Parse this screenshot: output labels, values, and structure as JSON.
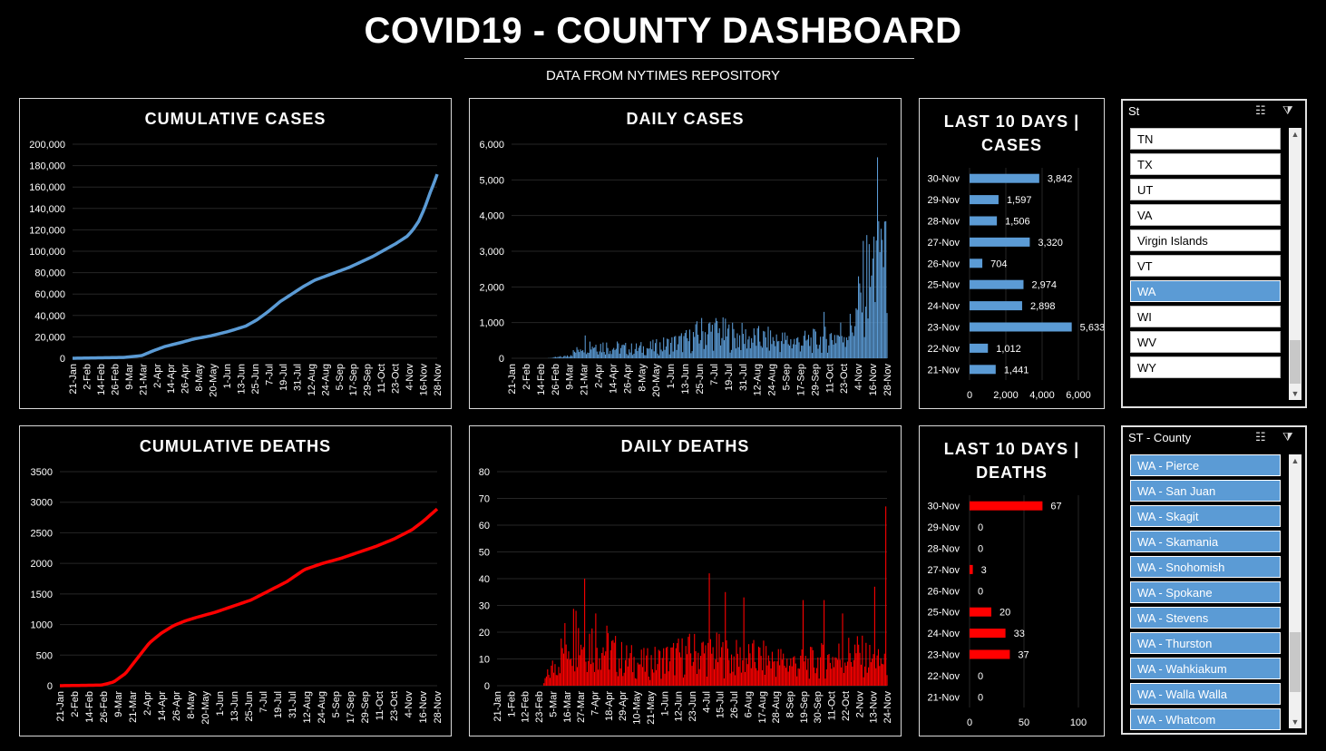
{
  "header": {
    "title": "COVID19 - COUNTY DASHBOARD",
    "subtitle": "DATA FROM NYTIMES REPOSITORY"
  },
  "colors": {
    "cases": "#5b9bd5",
    "deaths": "#ff0000",
    "background": "#000000",
    "selected_item": "#5b9bd5"
  },
  "chart_data": [
    {
      "id": "cumulative-cases",
      "type": "line",
      "title": "CUMULATIVE CASES",
      "x_ticks": [
        "21-Jan",
        "2-Feb",
        "14-Feb",
        "26-Feb",
        "9-Mar",
        "21-Mar",
        "2-Apr",
        "14-Apr",
        "26-Apr",
        "8-May",
        "20-May",
        "1-Jun",
        "13-Jun",
        "25-Jun",
        "7-Jul",
        "19-Jul",
        "31-Jul",
        "12-Aug",
        "24-Aug",
        "5-Sep",
        "17-Sep",
        "29-Sep",
        "11-Oct",
        "23-Oct",
        "4-Nov",
        "16-Nov",
        "28-Nov"
      ],
      "y_ticks": [
        "0",
        "20,000",
        "40,000",
        "60,000",
        "80,000",
        "100,000",
        "120,000",
        "140,000",
        "160,000",
        "180,000",
        "200,000"
      ],
      "ylim": [
        0,
        200000
      ],
      "points": [
        [
          0,
          0
        ],
        [
          45,
          800
        ],
        [
          60,
          2500
        ],
        [
          70,
          7000
        ],
        [
          80,
          11000
        ],
        [
          95,
          15000
        ],
        [
          105,
          18000
        ],
        [
          120,
          21000
        ],
        [
          135,
          25000
        ],
        [
          150,
          30000
        ],
        [
          160,
          36000
        ],
        [
          170,
          44000
        ],
        [
          180,
          53000
        ],
        [
          190,
          60000
        ],
        [
          200,
          67000
        ],
        [
          210,
          73000
        ],
        [
          220,
          77000
        ],
        [
          230,
          81000
        ],
        [
          240,
          85000
        ],
        [
          250,
          90000
        ],
        [
          260,
          95000
        ],
        [
          270,
          101000
        ],
        [
          280,
          107000
        ],
        [
          290,
          114000
        ],
        [
          295,
          120000
        ],
        [
          300,
          128000
        ],
        [
          305,
          140000
        ],
        [
          310,
          155000
        ],
        [
          313,
          163000
        ],
        [
          316,
          172000
        ]
      ]
    },
    {
      "id": "daily-cases",
      "type": "bar",
      "title": "DAILY CASES",
      "x_ticks": [
        "21-Jan",
        "2-Feb",
        "14-Feb",
        "26-Feb",
        "9-Mar",
        "21-Mar",
        "2-Apr",
        "14-Apr",
        "26-Apr",
        "8-May",
        "20-May",
        "1-Jun",
        "13-Jun",
        "25-Jun",
        "7-Jul",
        "19-Jul",
        "31-Jul",
        "12-Aug",
        "24-Aug",
        "5-Sep",
        "17-Sep",
        "29-Sep",
        "11-Oct",
        "23-Oct",
        "4-Nov",
        "16-Nov",
        "28-Nov"
      ],
      "y_ticks": [
        "0",
        "1,000",
        "2,000",
        "3,000",
        "4,000",
        "5,000",
        "6,000"
      ],
      "ylim": [
        0,
        6000
      ],
      "profile": [
        [
          0,
          0
        ],
        [
          30,
          0
        ],
        [
          45,
          50
        ],
        [
          55,
          200
        ],
        [
          60,
          450
        ],
        [
          70,
          380
        ],
        [
          85,
          300
        ],
        [
          100,
          250
        ],
        [
          120,
          300
        ],
        [
          135,
          400
        ],
        [
          150,
          500
        ],
        [
          160,
          700
        ],
        [
          170,
          750
        ],
        [
          180,
          650
        ],
        [
          190,
          600
        ],
        [
          200,
          550
        ],
        [
          220,
          500
        ],
        [
          240,
          450
        ],
        [
          255,
          480
        ],
        [
          265,
          550
        ],
        [
          275,
          650
        ],
        [
          285,
          800
        ],
        [
          290,
          1200
        ],
        [
          295,
          1800
        ],
        [
          300,
          2300
        ],
        [
          305,
          2600
        ],
        [
          310,
          3000
        ],
        [
          313,
          3200
        ]
      ],
      "spikes": [
        [
          263,
          1300
        ],
        [
          290,
          1400
        ],
        [
          301,
          3200
        ],
        [
          302,
          2000
        ],
        [
          307,
          3300
        ],
        [
          308,
          5633
        ],
        [
          309,
          3842
        ],
        [
          310,
          2974
        ],
        [
          312,
          3320
        ],
        [
          315,
          3842
        ]
      ]
    },
    {
      "id": "last10-cases",
      "type": "bar",
      "title": "LAST 10 DAYS | CASES",
      "categories": [
        "30-Nov",
        "29-Nov",
        "28-Nov",
        "27-Nov",
        "26-Nov",
        "25-Nov",
        "24-Nov",
        "23-Nov",
        "22-Nov",
        "21-Nov"
      ],
      "values": [
        3842,
        1597,
        1506,
        3320,
        704,
        2974,
        2898,
        5633,
        1012,
        1441
      ],
      "labels": [
        "3,842",
        "1,597",
        "1,506",
        "3,320",
        "704",
        "2,974",
        "2,898",
        "5,633",
        "1,012",
        "1,441"
      ],
      "x_ticks": [
        "0",
        "2,000",
        "4,000",
        "6,000"
      ],
      "xlim": [
        0,
        6000
      ]
    },
    {
      "id": "cumulative-deaths",
      "type": "line",
      "title": "CUMULATIVE DEATHS",
      "x_ticks": [
        "21-Jan",
        "2-Feb",
        "14-Feb",
        "26-Feb",
        "9-Mar",
        "21-Mar",
        "2-Apr",
        "14-Apr",
        "26-Apr",
        "8-May",
        "20-May",
        "1-Jun",
        "13-Jun",
        "25-Jun",
        "7-Jul",
        "19-Jul",
        "31-Jul",
        "12-Aug",
        "24-Aug",
        "5-Sep",
        "17-Sep",
        "29-Sep",
        "11-Oct",
        "23-Oct",
        "4-Nov",
        "16-Nov",
        "28-Nov"
      ],
      "y_ticks": [
        "0",
        "500",
        "1000",
        "1500",
        "2000",
        "2500",
        "3000",
        "3500"
      ],
      "ylim": [
        0,
        3500
      ],
      "points": [
        [
          0,
          0
        ],
        [
          35,
          10
        ],
        [
          45,
          60
        ],
        [
          55,
          200
        ],
        [
          65,
          450
        ],
        [
          75,
          700
        ],
        [
          85,
          860
        ],
        [
          95,
          980
        ],
        [
          105,
          1060
        ],
        [
          115,
          1120
        ],
        [
          130,
          1200
        ],
        [
          145,
          1300
        ],
        [
          160,
          1400
        ],
        [
          175,
          1550
        ],
        [
          190,
          1700
        ],
        [
          205,
          1900
        ],
        [
          220,
          2000
        ],
        [
          235,
          2080
        ],
        [
          250,
          2180
        ],
        [
          265,
          2280
        ],
        [
          280,
          2400
        ],
        [
          295,
          2550
        ],
        [
          305,
          2700
        ],
        [
          316,
          2890
        ]
      ]
    },
    {
      "id": "daily-deaths",
      "type": "bar",
      "title": "DAILY DEATHS",
      "x_ticks": [
        "21-Jan",
        "1-Feb",
        "12-Feb",
        "23-Feb",
        "5-Mar",
        "16-Mar",
        "27-Mar",
        "7-Apr",
        "18-Apr",
        "29-Apr",
        "10-May",
        "21-May",
        "1-Jun",
        "12-Jun",
        "23-Jun",
        "4-Jul",
        "15-Jul",
        "26-Jul",
        "6-Aug",
        "17-Aug",
        "28-Aug",
        "8-Sep",
        "19-Sep",
        "30-Sep",
        "11-Oct",
        "22-Oct",
        "2-Nov",
        "13-Nov",
        "24-Nov"
      ],
      "y_ticks": [
        "0",
        "10",
        "20",
        "30",
        "40",
        "50",
        "60",
        "70",
        "80"
      ],
      "ylim": [
        0,
        80
      ],
      "profile": [
        [
          0,
          0
        ],
        [
          37,
          0
        ],
        [
          40,
          3
        ],
        [
          50,
          10
        ],
        [
          60,
          20
        ],
        [
          70,
          18
        ],
        [
          85,
          15
        ],
        [
          100,
          10
        ],
        [
          120,
          8
        ],
        [
          140,
          10
        ],
        [
          160,
          12
        ],
        [
          175,
          12
        ],
        [
          190,
          10
        ],
        [
          210,
          10
        ],
        [
          230,
          9
        ],
        [
          250,
          8
        ],
        [
          270,
          10
        ],
        [
          290,
          12
        ],
        [
          310,
          8
        ],
        [
          313,
          10
        ]
      ],
      "spikes": [
        [
          71,
          40
        ],
        [
          64,
          28
        ],
        [
          80,
          27
        ],
        [
          172,
          42
        ],
        [
          185,
          35
        ],
        [
          200,
          33
        ],
        [
          248,
          32
        ],
        [
          265,
          32
        ],
        [
          280,
          27
        ],
        [
          306,
          37
        ],
        [
          315,
          67
        ]
      ]
    },
    {
      "id": "last10-deaths",
      "type": "bar",
      "title": "LAST 10 DAYS | DEATHS",
      "categories": [
        "30-Nov",
        "29-Nov",
        "28-Nov",
        "27-Nov",
        "26-Nov",
        "25-Nov",
        "24-Nov",
        "23-Nov",
        "22-Nov",
        "21-Nov"
      ],
      "values": [
        67,
        0,
        0,
        3,
        0,
        20,
        33,
        37,
        0,
        0
      ],
      "labels": [
        "67",
        "0",
        "0",
        "3",
        "0",
        "20",
        "33",
        "37",
        "0",
        "0"
      ],
      "x_ticks": [
        "0",
        "50",
        "100"
      ],
      "xlim": [
        0,
        100
      ]
    }
  ],
  "slicer_state": {
    "header": "St",
    "items": [
      {
        "label": "TN",
        "selected": false
      },
      {
        "label": "TX",
        "selected": false
      },
      {
        "label": "UT",
        "selected": false
      },
      {
        "label": "VA",
        "selected": false
      },
      {
        "label": "Virgin Islands",
        "selected": false
      },
      {
        "label": "VT",
        "selected": false
      },
      {
        "label": "WA",
        "selected": true
      },
      {
        "label": "WI",
        "selected": false
      },
      {
        "label": "WV",
        "selected": false
      },
      {
        "label": "WY",
        "selected": false
      }
    ]
  },
  "slicer_county": {
    "header": "ST - County",
    "items": [
      {
        "label": "WA - Pierce",
        "selected": true
      },
      {
        "label": "WA - San Juan",
        "selected": true
      },
      {
        "label": "WA - Skagit",
        "selected": true
      },
      {
        "label": "WA - Skamania",
        "selected": true
      },
      {
        "label": "WA - Snohomish",
        "selected": true
      },
      {
        "label": "WA - Spokane",
        "selected": true
      },
      {
        "label": "WA - Stevens",
        "selected": true
      },
      {
        "label": "WA - Thurston",
        "selected": true
      },
      {
        "label": "WA - Wahkiakum",
        "selected": true
      },
      {
        "label": "WA - Walla Walla",
        "selected": true
      },
      {
        "label": "WA - Whatcom",
        "selected": true
      }
    ]
  },
  "icons": {
    "multi_select": "multi-select-icon",
    "clear_filter": "clear-filter-icon"
  }
}
